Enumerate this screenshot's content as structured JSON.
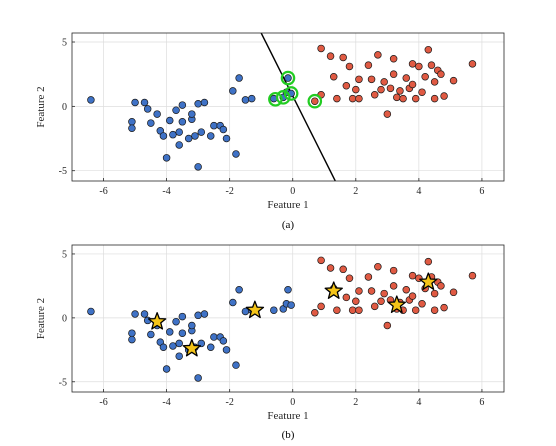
{
  "colors": {
    "class_blue": "#3F72C6",
    "class_red": "#E05A43",
    "support_ring": "#22CC22",
    "star_fill": "#F4C418",
    "grid": "#DDDDDD",
    "boundary": "#000000"
  },
  "chart_data": [
    {
      "type": "scatter",
      "caption": "(a)",
      "xlabel": "Feature 1",
      "ylabel": "Feature 2",
      "xlim": [
        -7,
        6.7
      ],
      "ylim": [
        -5.8,
        5.7
      ],
      "xticks": [
        -6,
        -4,
        -2,
        0,
        2,
        4,
        6
      ],
      "yticks": [
        -5,
        0,
        5
      ],
      "grid": true,
      "series": [
        {
          "color_key": "class_blue",
          "points": [
            [
              -6.4,
              0.5
            ],
            [
              -5.1,
              -1.2
            ],
            [
              -5.1,
              -1.7
            ],
            [
              -5.0,
              0.3
            ],
            [
              -4.7,
              0.3
            ],
            [
              -4.6,
              -0.2
            ],
            [
              -4.5,
              -1.3
            ],
            [
              -4.3,
              -0.6
            ],
            [
              -4.2,
              -1.9
            ],
            [
              -4.1,
              -2.3
            ],
            [
              -4.0,
              -4.0
            ],
            [
              -3.9,
              -1.1
            ],
            [
              -3.8,
              -2.2
            ],
            [
              -3.7,
              -0.3
            ],
            [
              -3.6,
              -3.0
            ],
            [
              -3.6,
              -2.0
            ],
            [
              -3.5,
              0.1
            ],
            [
              -3.5,
              -1.2
            ],
            [
              -3.3,
              -2.5
            ],
            [
              -3.2,
              -1.0
            ],
            [
              -3.2,
              -0.6
            ],
            [
              -3.1,
              -2.3
            ],
            [
              -3.0,
              -4.7
            ],
            [
              -3.0,
              0.2
            ],
            [
              -2.9,
              -2.0
            ],
            [
              -2.8,
              0.3
            ],
            [
              -2.6,
              -2.3
            ],
            [
              -2.5,
              -1.5
            ],
            [
              -2.3,
              -1.5
            ],
            [
              -2.2,
              -1.8
            ],
            [
              -2.1,
              -2.5
            ],
            [
              -1.9,
              1.2
            ],
            [
              -1.8,
              -3.7
            ],
            [
              -1.7,
              2.2
            ],
            [
              -1.5,
              0.5
            ],
            [
              -1.3,
              0.6
            ],
            [
              -0.6,
              0.6
            ],
            [
              -0.3,
              0.7
            ],
            [
              -0.2,
              1.1
            ],
            [
              -0.15,
              2.2
            ],
            [
              -0.05,
              1.0
            ]
          ]
        },
        {
          "color_key": "class_red",
          "points": [
            [
              0.7,
              0.4
            ],
            [
              0.9,
              0.9
            ],
            [
              0.9,
              4.5
            ],
            [
              1.2,
              3.9
            ],
            [
              1.3,
              2.3
            ],
            [
              1.4,
              0.6
            ],
            [
              1.6,
              3.8
            ],
            [
              1.7,
              1.6
            ],
            [
              1.8,
              3.1
            ],
            [
              1.9,
              0.6
            ],
            [
              2.0,
              1.3
            ],
            [
              2.1,
              0.6
            ],
            [
              2.1,
              2.1
            ],
            [
              2.4,
              3.2
            ],
            [
              2.5,
              2.1
            ],
            [
              2.6,
              0.9
            ],
            [
              2.7,
              4.0
            ],
            [
              2.8,
              1.3
            ],
            [
              2.9,
              1.9
            ],
            [
              3.0,
              -0.6
            ],
            [
              3.1,
              1.4
            ],
            [
              3.2,
              3.7
            ],
            [
              3.2,
              2.5
            ],
            [
              3.3,
              0.7
            ],
            [
              3.4,
              1.2
            ],
            [
              3.5,
              0.6
            ],
            [
              3.6,
              2.2
            ],
            [
              3.7,
              1.4
            ],
            [
              3.8,
              3.3
            ],
            [
              3.8,
              1.7
            ],
            [
              3.9,
              0.6
            ],
            [
              4.0,
              3.1
            ],
            [
              4.1,
              1.1
            ],
            [
              4.2,
              2.3
            ],
            [
              4.3,
              4.4
            ],
            [
              4.4,
              3.2
            ],
            [
              4.5,
              1.9
            ],
            [
              4.5,
              0.6
            ],
            [
              4.6,
              2.8
            ],
            [
              4.7,
              2.5
            ],
            [
              4.8,
              0.8
            ],
            [
              5.1,
              2.0
            ],
            [
              5.7,
              3.3
            ]
          ]
        },
        {
          "marker": "ring",
          "color_key": "support_ring",
          "points": [
            [
              -0.55,
              0.55
            ],
            [
              -0.3,
              0.7
            ],
            [
              -0.05,
              1.0
            ],
            [
              -0.15,
              2.2
            ],
            [
              0.7,
              0.4
            ]
          ]
        }
      ],
      "boundary_line": [
        [
          -1.0,
          5.7
        ],
        [
          1.35,
          -5.8
        ]
      ]
    },
    {
      "type": "scatter",
      "caption": "(b)",
      "xlabel": "Feature 1",
      "ylabel": "Feature 2",
      "xlim": [
        -7,
        6.7
      ],
      "ylim": [
        -5.8,
        5.7
      ],
      "xticks": [
        -6,
        -4,
        -2,
        0,
        2,
        4,
        6
      ],
      "yticks": [
        -5,
        0,
        5
      ],
      "grid": true,
      "series": [
        {
          "color_key": "class_blue",
          "points": [
            [
              -6.4,
              0.5
            ],
            [
              -5.1,
              -1.2
            ],
            [
              -5.1,
              -1.7
            ],
            [
              -5.0,
              0.3
            ],
            [
              -4.7,
              0.3
            ],
            [
              -4.6,
              -0.2
            ],
            [
              -4.5,
              -1.3
            ],
            [
              -4.3,
              -0.6
            ],
            [
              -4.2,
              -1.9
            ],
            [
              -4.1,
              -2.3
            ],
            [
              -4.0,
              -4.0
            ],
            [
              -3.9,
              -1.1
            ],
            [
              -3.8,
              -2.2
            ],
            [
              -3.7,
              -0.3
            ],
            [
              -3.6,
              -3.0
            ],
            [
              -3.6,
              -2.0
            ],
            [
              -3.5,
              0.1
            ],
            [
              -3.5,
              -1.2
            ],
            [
              -3.3,
              -2.5
            ],
            [
              -3.2,
              -1.0
            ],
            [
              -3.2,
              -0.6
            ],
            [
              -3.1,
              -2.3
            ],
            [
              -3.0,
              -4.7
            ],
            [
              -3.0,
              0.2
            ],
            [
              -2.9,
              -2.0
            ],
            [
              -2.8,
              0.3
            ],
            [
              -2.6,
              -2.3
            ],
            [
              -2.5,
              -1.5
            ],
            [
              -2.3,
              -1.5
            ],
            [
              -2.2,
              -1.8
            ],
            [
              -2.1,
              -2.5
            ],
            [
              -1.9,
              1.2
            ],
            [
              -1.8,
              -3.7
            ],
            [
              -1.7,
              2.2
            ],
            [
              -1.5,
              0.5
            ],
            [
              -1.3,
              0.6
            ],
            [
              -0.6,
              0.6
            ],
            [
              -0.3,
              0.7
            ],
            [
              -0.2,
              1.1
            ],
            [
              -0.15,
              2.2
            ],
            [
              -0.05,
              1.0
            ]
          ]
        },
        {
          "color_key": "class_red",
          "points": [
            [
              0.7,
              0.4
            ],
            [
              0.9,
              0.9
            ],
            [
              0.9,
              4.5
            ],
            [
              1.2,
              3.9
            ],
            [
              1.3,
              2.3
            ],
            [
              1.4,
              0.6
            ],
            [
              1.6,
              3.8
            ],
            [
              1.7,
              1.6
            ],
            [
              1.8,
              3.1
            ],
            [
              1.9,
              0.6
            ],
            [
              2.0,
              1.3
            ],
            [
              2.1,
              0.6
            ],
            [
              2.1,
              2.1
            ],
            [
              2.4,
              3.2
            ],
            [
              2.5,
              2.1
            ],
            [
              2.6,
              0.9
            ],
            [
              2.7,
              4.0
            ],
            [
              2.8,
              1.3
            ],
            [
              2.9,
              1.9
            ],
            [
              3.0,
              -0.6
            ],
            [
              3.1,
              1.4
            ],
            [
              3.2,
              3.7
            ],
            [
              3.2,
              2.5
            ],
            [
              3.3,
              0.7
            ],
            [
              3.4,
              1.2
            ],
            [
              3.5,
              0.6
            ],
            [
              3.6,
              2.2
            ],
            [
              3.7,
              1.4
            ],
            [
              3.8,
              3.3
            ],
            [
              3.8,
              1.7
            ],
            [
              3.9,
              0.6
            ],
            [
              4.0,
              3.1
            ],
            [
              4.1,
              1.1
            ],
            [
              4.2,
              2.3
            ],
            [
              4.3,
              4.4
            ],
            [
              4.4,
              3.2
            ],
            [
              4.5,
              1.9
            ],
            [
              4.5,
              0.6
            ],
            [
              4.6,
              2.8
            ],
            [
              4.7,
              2.5
            ],
            [
              4.8,
              0.8
            ],
            [
              5.1,
              2.0
            ],
            [
              5.7,
              3.3
            ]
          ]
        },
        {
          "marker": "star",
          "color_key": "star_fill",
          "points": [
            [
              -4.3,
              -0.3
            ],
            [
              -3.2,
              -2.4
            ],
            [
              -1.2,
              0.6
            ],
            [
              1.3,
              2.1
            ],
            [
              3.3,
              1.0
            ],
            [
              4.3,
              2.8
            ]
          ]
        }
      ]
    }
  ]
}
